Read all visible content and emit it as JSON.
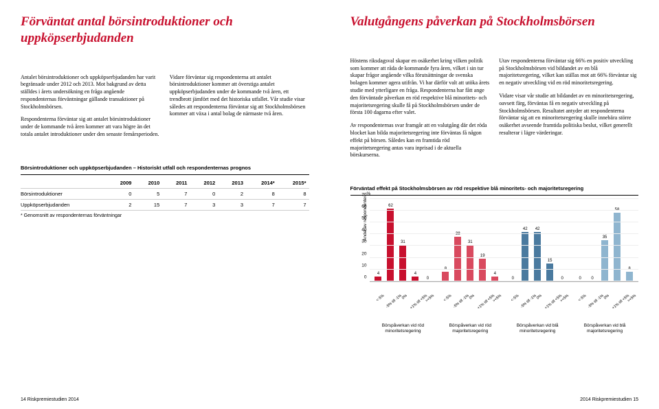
{
  "left": {
    "heading": "Förväntat antal börsintroduktioner och uppköpserbjudanden",
    "p1": "Antalet börsintroduktioner och uppköpserbjudanden har varit begränsade under 2012 och 2013. Mot bakgrund av detta ställdes i årets undersökning en fråga angående respondenternas förväntningar gällande transaktioner på Stockholmsbörsen.",
    "p2": "Respondenterna förväntar sig att antalet börsintroduktioner under de kommande två åren kommer att vara högre än det totala antalet introduktioner under den senaste femårsperioden.",
    "p3": "Vidare förväntar sig respondenterna att antalet börsintroduktioner kommer att överstiga antalet uppköpserbjudanden under de kommande två åren, ett trendbrott jämfört med det historiska utfallet. Vår studie visar således att respondenterna förväntar sig att Stockholmsbörsen kommer att växa i antal bolag de närmaste två åren.",
    "table": {
      "title": "Börsintroduktioner och uppköpserbjudanden – Historiskt utfall och respondenternas prognos",
      "columns": [
        "",
        "2009",
        "2010",
        "2011",
        "2012",
        "2013",
        "2014*",
        "2015*"
      ],
      "rows": [
        [
          "Börsintroduktioner",
          "0",
          "5",
          "7",
          "0",
          "2",
          "8",
          "8"
        ],
        [
          "Uppköpserbjudanden",
          "2",
          "15",
          "7",
          "3",
          "3",
          "7",
          "7"
        ]
      ],
      "footnote": "* Genomsnitt av respondenternas förväntningar"
    },
    "footer": "14  Riskpremiestudien 2014"
  },
  "right": {
    "heading": "Valutgångens påverkan på Stockholmsbörsen",
    "p1": "Höstens riksdagsval skapar en osäkerhet kring vilken politik som kommer att råda de kommande fyra åren, vilket i sin tur skapar frågor angående vilka förutsättningar de svenska bolagen kommer agera utifrån. Vi har därför valt att utöka årets studie med ytterligare en fråga. Respondenterna har fått ange den förväntade påverkan en röd respektive blå minoritets- och majoritetsregering skulle få på Stockholmsbörsen under de första 100 dagarna efter valet.",
    "p2": "Av respondenternas svar framgår att en valutgång där det röda blocket kan bilda majoritetsregering inte förväntas få någon effekt på börsen. Således kan en framtida röd majoritetsregering antas vara inprisad i de aktuella börskurserna.",
    "p3": "Utav respondenterna förväntar sig 66% en positiv utveckling på Stockholmsbörsen vid bildandet av en blå majoritetsregering, vilket kan ställas mot att 66% förväntar sig en negativ utveckling vid en röd minoritetsregering.",
    "p4": "Vidare visar vår studie att bildandet av en minoritetsregering, oavsett färg, förväntas få en negativ utveckling på Stockholmsbörsen. Resultatet antyder att respondenterna förväntar sig att en minoritetsregering skulle innebära större osäkerhet avseende framtida politiska beslut, vilket generellt resulterar i lägre värderingar.",
    "chart": {
      "title": "Förväntad effekt på Stockholmsbörsen av röd respektive blå minoritets- och majoritetsregering",
      "ylabel": "Andel av respondenter",
      "ylim": [
        0,
        70
      ],
      "ytick_step": 10,
      "pct_label": "%",
      "colors": {
        "red_minor": "#c8102e",
        "red_major": "#d94a5f",
        "blue_minor": "#4a7a9f",
        "blue_major": "#8fb5cf"
      },
      "xcats": [
        "<-5%",
        "-5% till -1%",
        "0%",
        "+1% till +5%",
        ">+5%"
      ],
      "groups": [
        {
          "label": "Börspåverkan vid röd minoritetsregering",
          "color": "#c8102e",
          "values": [
            4,
            62,
            31,
            4,
            0
          ]
        },
        {
          "label": "Börspåverkan vid röd majoritetsregering",
          "color": "#d94a5f",
          "values": [
            8,
            38,
            31,
            19,
            4
          ]
        },
        {
          "label": "Börspåverkan vid blå minoritetsregering",
          "color": "#4a7a9f",
          "values": [
            0,
            42,
            42,
            15,
            0
          ]
        },
        {
          "label": "Börspåverkan vid blå majoritetsregering",
          "color": "#8fb5cf",
          "values": [
            0,
            0,
            35,
            58,
            8
          ]
        }
      ]
    },
    "footer": "2014 Riskpremiestudien  15"
  }
}
